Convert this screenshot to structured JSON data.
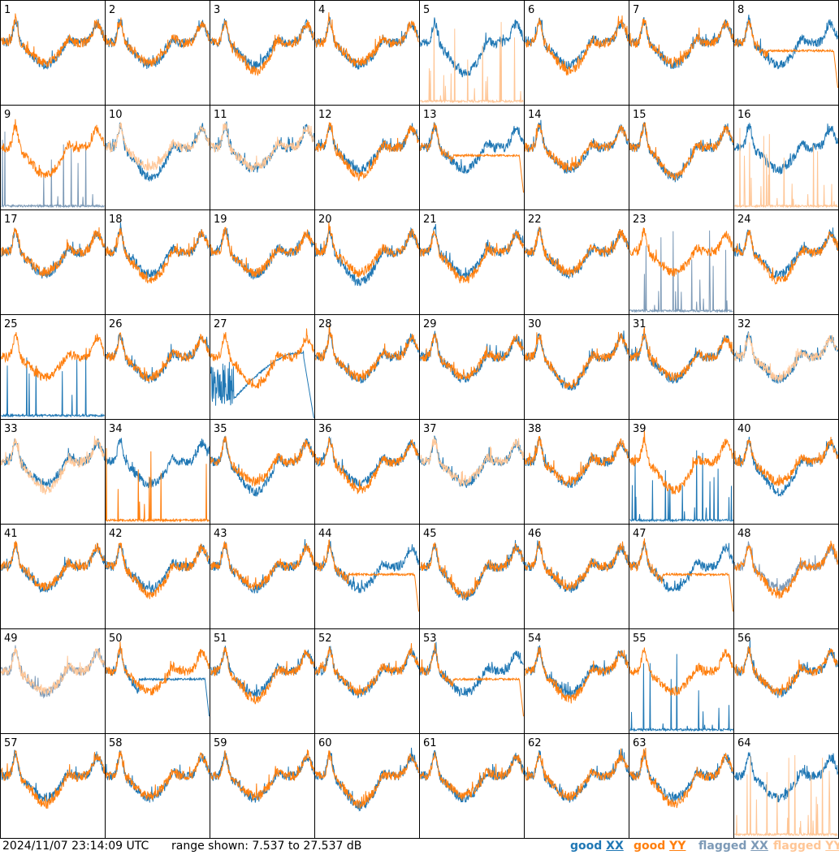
{
  "chart_data": {
    "type": "line",
    "title": "",
    "grid": {
      "rows": 8,
      "cols": 8
    },
    "panel_labels": [
      "1",
      "2",
      "3",
      "4",
      "5",
      "6",
      "7",
      "8",
      "9",
      "10",
      "11",
      "12",
      "13",
      "14",
      "15",
      "16",
      "17",
      "18",
      "19",
      "20",
      "21",
      "22",
      "23",
      "24",
      "25",
      "26",
      "27",
      "28",
      "29",
      "30",
      "31",
      "32",
      "33",
      "34",
      "35",
      "36",
      "37",
      "38",
      "39",
      "40",
      "41",
      "42",
      "43",
      "44",
      "45",
      "46",
      "47",
      "48",
      "49",
      "50",
      "51",
      "52",
      "53",
      "54",
      "55",
      "56",
      "57",
      "58",
      "59",
      "60",
      "61",
      "62",
      "63",
      "64"
    ],
    "ylim_db": [
      7.537,
      27.537
    ],
    "series": [
      {
        "name": "good XX",
        "color": "#1f77b4"
      },
      {
        "name": "good YY",
        "color": "#ff7f0e"
      },
      {
        "name": "flagged XX",
        "color": "#7d9ab7"
      },
      {
        "name": "flagged YY",
        "color": "#ffc696"
      }
    ],
    "panel_status": {
      "xx_flagged": [
        9,
        23,
        48,
        49
      ],
      "yy_flagged": [
        5,
        10,
        11,
        16,
        32,
        33,
        37,
        49,
        64
      ],
      "xx_spiky": [
        25,
        39,
        55
      ],
      "yy_spiky": [
        34
      ],
      "xx_decay": [
        27
      ],
      "yy_flat_droop": [
        8,
        13,
        44,
        47,
        53
      ],
      "xx_flat_droop": [
        50
      ]
    }
  },
  "footer": {
    "timestamp": "2024/11/07 23:14:09 UTC",
    "range_text": "range shown: 7.537 to 27.537 dB",
    "legend": {
      "good_label": "good",
      "flagged_label": "flagged",
      "xx_label": "XX",
      "yy_label": "YY"
    }
  }
}
